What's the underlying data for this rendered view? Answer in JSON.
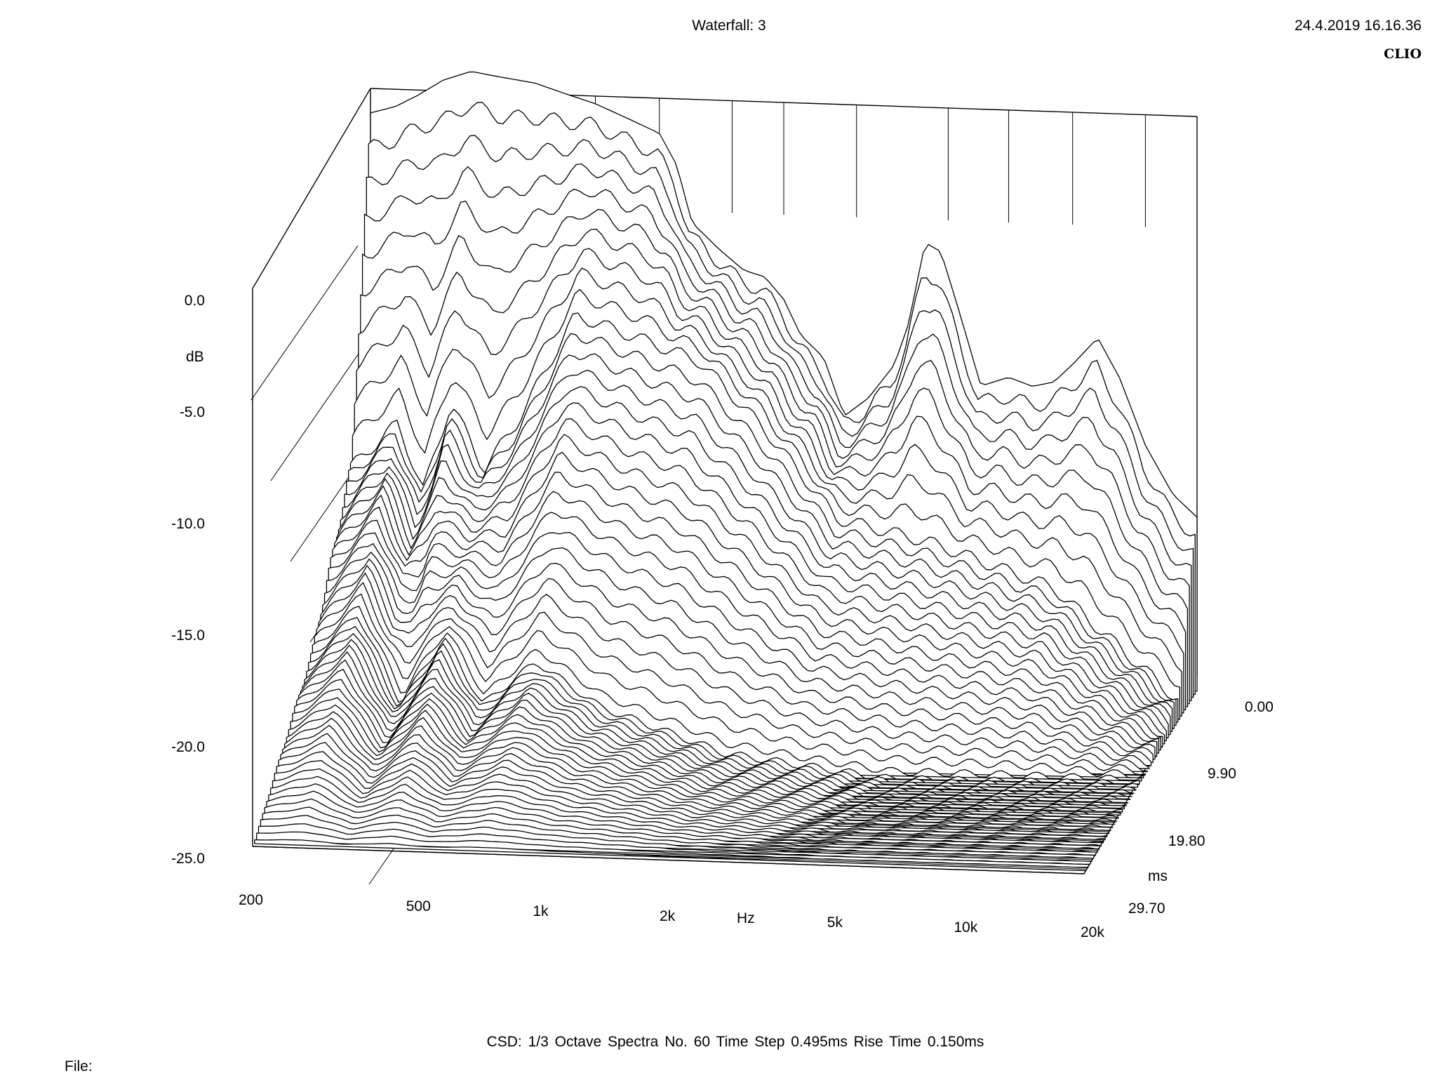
{
  "header": {
    "title": "Waterfall: 3",
    "datetime": "24.4.2019 16.16.36",
    "brand": "CLIO"
  },
  "footer": {
    "summary": "CSD:   1/3 Octave   Spectra No. 60   Time Step 0.495ms   Rise Time 0.150ms",
    "file_label": "File:"
  },
  "chart_data": {
    "type": "waterfall",
    "title": "Waterfall: 3",
    "xlabel": "Hz",
    "ylabel": "dB",
    "zlabel": "ms",
    "x_scale": "log",
    "xlim": [
      200,
      20000
    ],
    "ylim": [
      -25,
      0
    ],
    "zlim": [
      0,
      29.7
    ],
    "x_ticks": [
      "200",
      "500",
      "1k",
      "2k",
      "5k",
      "10k",
      "20k"
    ],
    "y_ticks": [
      "0.0",
      "-5.0",
      "-10.0",
      "-15.0",
      "-20.0",
      "-25.0"
    ],
    "z_ticks": [
      "0.00",
      "9.90",
      "19.80",
      "29.70"
    ],
    "smoothing": "1/3 Octave",
    "spectra_count": 60,
    "time_step_ms": 0.495,
    "rise_time_ms": 0.15,
    "series": [
      {
        "time_ms": 0.0,
        "points": [
          {
            "hz": 200,
            "db": 0.6
          },
          {
            "hz": 230,
            "db": 0.9
          },
          {
            "hz": 260,
            "db": 1.4
          },
          {
            "hz": 300,
            "db": 2.1
          },
          {
            "hz": 350,
            "db": 2.5
          },
          {
            "hz": 400,
            "db": 2.3
          },
          {
            "hz": 500,
            "db": 2.0
          },
          {
            "hz": 600,
            "db": 1.5
          },
          {
            "hz": 700,
            "db": 1.1
          },
          {
            "hz": 850,
            "db": 0.4
          },
          {
            "hz": 1000,
            "db": -0.2
          },
          {
            "hz": 1100,
            "db": -1.6
          },
          {
            "hz": 1200,
            "db": -4.2
          },
          {
            "hz": 1400,
            "db": -5.4
          },
          {
            "hz": 1600,
            "db": -6.3
          },
          {
            "hz": 1800,
            "db": -6.6
          },
          {
            "hz": 2000,
            "db": -7.6
          },
          {
            "hz": 2200,
            "db": -9.2
          },
          {
            "hz": 2500,
            "db": -10.2
          },
          {
            "hz": 2800,
            "db": -12.8
          },
          {
            "hz": 3200,
            "db": -12.0
          },
          {
            "hz": 3700,
            "db": -10.5
          },
          {
            "hz": 4000,
            "db": -8.7
          },
          {
            "hz": 4400,
            "db": -5.0
          },
          {
            "hz": 4800,
            "db": -5.4
          },
          {
            "hz": 5300,
            "db": -8.0
          },
          {
            "hz": 6000,
            "db": -11.4
          },
          {
            "hz": 7000,
            "db": -11.0
          },
          {
            "hz": 8000,
            "db": -11.4
          },
          {
            "hz": 9000,
            "db": -11.2
          },
          {
            "hz": 10000,
            "db": -10.4
          },
          {
            "hz": 11500,
            "db": -9.2
          },
          {
            "hz": 13000,
            "db": -11.0
          },
          {
            "hz": 15000,
            "db": -14.0
          },
          {
            "hz": 17500,
            "db": -16.2
          },
          {
            "hz": 20000,
            "db": -17.2
          }
        ]
      },
      {
        "time_ms": 4.95,
        "points": [
          {
            "hz": 200,
            "db": -14
          },
          {
            "hz": 260,
            "db": -12
          },
          {
            "hz": 300,
            "db": -15
          },
          {
            "hz": 350,
            "db": -11
          },
          {
            "hz": 420,
            "db": -14
          },
          {
            "hz": 500,
            "db": -12
          },
          {
            "hz": 700,
            "db": -7
          },
          {
            "hz": 1000,
            "db": -8
          },
          {
            "hz": 1400,
            "db": -9
          },
          {
            "hz": 2000,
            "db": -12
          },
          {
            "hz": 3000,
            "db": -16
          },
          {
            "hz": 5000,
            "db": -17
          },
          {
            "hz": 10000,
            "db": -19
          },
          {
            "hz": 20000,
            "db": -24
          }
        ]
      },
      {
        "time_ms": 14.85,
        "points": [
          {
            "hz": 200,
            "db": -20
          },
          {
            "hz": 260,
            "db": -18
          },
          {
            "hz": 330,
            "db": -22
          },
          {
            "hz": 420,
            "db": -19
          },
          {
            "hz": 520,
            "db": -22
          },
          {
            "hz": 700,
            "db": -20
          },
          {
            "hz": 1000,
            "db": -22
          },
          {
            "hz": 2000,
            "db": -24
          },
          {
            "hz": 5000,
            "db": -25
          },
          {
            "hz": 20000,
            "db": -25
          }
        ]
      },
      {
        "time_ms": 29.7,
        "points": [
          {
            "hz": 200,
            "db": -25
          },
          {
            "hz": 500,
            "db": -25
          },
          {
            "hz": 1000,
            "db": -25
          },
          {
            "hz": 20000,
            "db": -25
          }
        ]
      }
    ]
  }
}
